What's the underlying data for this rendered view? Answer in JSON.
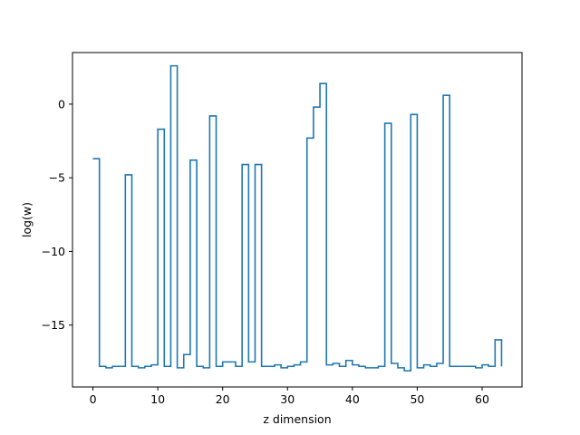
{
  "chart_data": {
    "type": "line",
    "drawstyle": "steps-post",
    "title": "",
    "xlabel": "z dimension",
    "ylabel": "log(w)",
    "xlim": [
      -3.15,
      66.15
    ],
    "ylim": [
      -19.2,
      3.5
    ],
    "xticks": [
      0,
      10,
      20,
      30,
      40,
      50,
      60
    ],
    "yticks": [
      -15,
      -10,
      -5,
      0
    ],
    "grid": false,
    "series": [
      {
        "color": "#1f77b4",
        "x": [
          0,
          1,
          2,
          3,
          4,
          5,
          6,
          7,
          8,
          9,
          10,
          11,
          12,
          13,
          14,
          15,
          16,
          17,
          18,
          19,
          20,
          21,
          22,
          23,
          24,
          25,
          26,
          27,
          28,
          29,
          30,
          31,
          32,
          33,
          34,
          35,
          36,
          37,
          38,
          39,
          40,
          41,
          42,
          43,
          44,
          45,
          46,
          47,
          48,
          49,
          50,
          51,
          52,
          53,
          54,
          55,
          56,
          57,
          58,
          59,
          60,
          61,
          62,
          63
        ],
        "values": [
          -3.7,
          -17.8,
          -17.9,
          -17.8,
          -17.8,
          -4.8,
          -17.8,
          -17.9,
          -17.8,
          -17.7,
          -1.7,
          -17.8,
          2.6,
          -17.9,
          -17.0,
          -3.8,
          -17.8,
          -17.9,
          -0.8,
          -17.8,
          -17.5,
          -17.5,
          -17.8,
          -4.1,
          -17.5,
          -4.1,
          -17.8,
          -17.8,
          -17.7,
          -17.9,
          -17.8,
          -17.7,
          -17.5,
          -2.3,
          -0.2,
          1.4,
          -17.7,
          -17.6,
          -17.8,
          -17.4,
          -17.7,
          -17.8,
          -17.9,
          -17.9,
          -17.8,
          -1.3,
          -17.6,
          -17.9,
          -18.1,
          -0.7,
          -17.9,
          -17.7,
          -17.8,
          -17.6,
          0.6,
          -17.8,
          -17.8,
          -17.8,
          -17.8,
          -17.9,
          -17.7,
          -17.8,
          -16.0,
          -17.8
        ]
      }
    ]
  }
}
